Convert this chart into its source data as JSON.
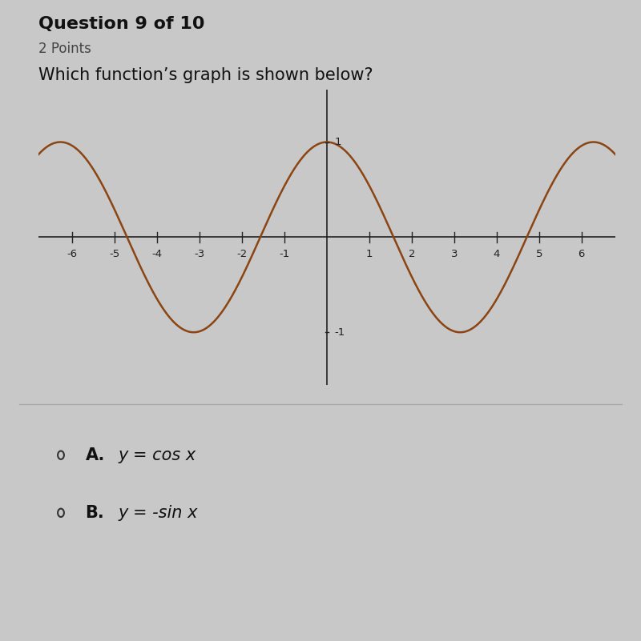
{
  "title": "Question 9 of 10",
  "subtitle": "2 Points",
  "question": "Which function’s graph is shown below?",
  "function": "cos",
  "xlim": [
    -6.8,
    6.8
  ],
  "ylim": [
    -1.55,
    1.55
  ],
  "x_ticks": [
    -6,
    -5,
    -4,
    -3,
    -2,
    -1,
    1,
    2,
    3,
    4,
    5,
    6
  ],
  "curve_color": "#8B4513",
  "axis_color": "#222222",
  "bg_color": "#c8c8c8",
  "choices": [
    {
      "label": "A.",
      "text": "y = cos x"
    },
    {
      "label": "B.",
      "text": "y = -sin x"
    }
  ],
  "choice_fontsize": 15,
  "title_fontsize": 16,
  "subtitle_fontsize": 12,
  "question_fontsize": 15,
  "separator_color": "#aaaaaa"
}
